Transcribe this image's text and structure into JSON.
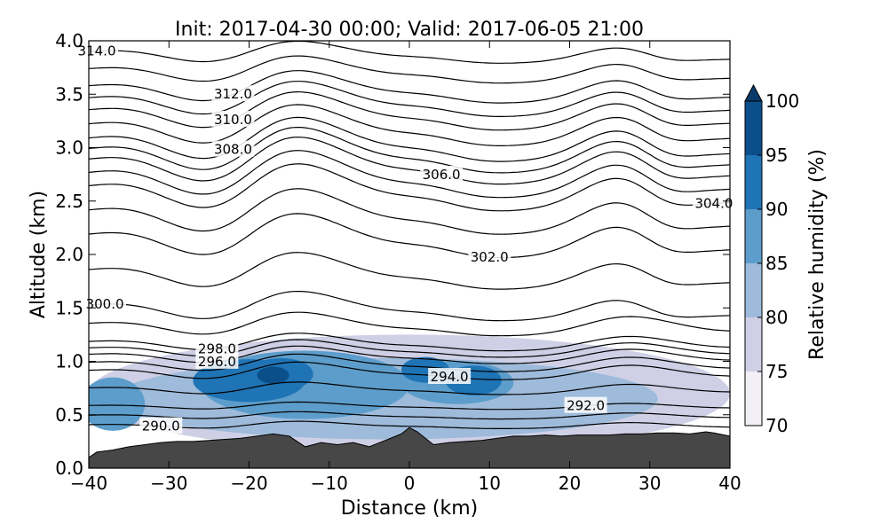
{
  "chart_data": {
    "type": "contour",
    "title": "Init: 2017-04-30 00:00; Valid: 2017-06-05 21:00",
    "xlabel": "Distance (km)",
    "ylabel": "Altitude (km)",
    "xlim": [
      -40,
      40
    ],
    "ylim": [
      0.0,
      4.0
    ],
    "x_ticks": [
      "−40",
      "−30",
      "−20",
      "−10",
      "0",
      "10",
      "20",
      "30",
      "40"
    ],
    "x_tick_values": [
      -40,
      -30,
      -20,
      -10,
      0,
      10,
      20,
      30,
      40
    ],
    "y_ticks": [
      "0.0",
      "0.5",
      "1.0",
      "1.5",
      "2.0",
      "2.5",
      "3.0",
      "3.5",
      "4.0"
    ],
    "y_tick_values": [
      0.0,
      0.5,
      1.0,
      1.5,
      2.0,
      2.5,
      3.0,
      3.5,
      4.0
    ],
    "colorbar": {
      "label": "Relative humidity (%)",
      "levels": [
        70,
        75,
        80,
        85,
        90,
        95,
        100
      ],
      "tick_labels": [
        "70",
        "75",
        "80",
        "85",
        "90",
        "95",
        "100"
      ],
      "colors": [
        "#f2eff6",
        "#cfd0e6",
        "#9ebbdb",
        "#5c9dcb",
        "#1f74b5",
        "#0b4f8a",
        "#083b6a"
      ],
      "extend": "max"
    },
    "terrain": {
      "color": "#474747",
      "x": [
        -40,
        -39,
        -37,
        -35,
        -33,
        -31,
        -29,
        -27,
        -25,
        -23,
        -21,
        -19,
        -17,
        -15,
        -13,
        -11,
        -9,
        -7,
        -5,
        -3,
        -1,
        0,
        1,
        3,
        5,
        7,
        9,
        11,
        13,
        15,
        17,
        19,
        21,
        23,
        25,
        27,
        29,
        31,
        33,
        35,
        37,
        38,
        40
      ],
      "y": [
        0.1,
        0.15,
        0.17,
        0.2,
        0.22,
        0.24,
        0.25,
        0.25,
        0.26,
        0.27,
        0.28,
        0.3,
        0.32,
        0.3,
        0.2,
        0.24,
        0.22,
        0.24,
        0.2,
        0.26,
        0.32,
        0.38,
        0.34,
        0.22,
        0.24,
        0.25,
        0.26,
        0.28,
        0.3,
        0.3,
        0.31,
        0.3,
        0.31,
        0.31,
        0.31,
        0.32,
        0.32,
        0.33,
        0.33,
        0.32,
        0.34,
        0.33,
        0.3
      ]
    },
    "humidity_blobs": [
      {
        "level": 75,
        "cx": 0,
        "cy": 0.7,
        "rx": 40,
        "ry": 0.55
      },
      {
        "level": 80,
        "cx": -3,
        "cy": 0.65,
        "rx": 34,
        "ry": 0.38
      },
      {
        "level": 85,
        "cx": -13,
        "cy": 0.78,
        "rx": 13,
        "ry": 0.32
      },
      {
        "level": 85,
        "cx": 6,
        "cy": 0.8,
        "rx": 7,
        "ry": 0.2
      },
      {
        "level": 85,
        "cx": -37,
        "cy": 0.6,
        "rx": 4,
        "ry": 0.25
      },
      {
        "level": 90,
        "cx": -20,
        "cy": 0.82,
        "rx": 7,
        "ry": 0.2
      },
      {
        "level": 90,
        "cx": -16,
        "cy": 0.88,
        "rx": 4,
        "ry": 0.15
      },
      {
        "level": 90,
        "cx": 2,
        "cy": 0.92,
        "rx": 3,
        "ry": 0.12
      },
      {
        "level": 90,
        "cx": 8,
        "cy": 0.82,
        "rx": 3.5,
        "ry": 0.14
      },
      {
        "level": 95,
        "cx": -17,
        "cy": 0.87,
        "rx": 2,
        "ry": 0.08
      }
    ],
    "contours": [
      {
        "label": "290.0",
        "base": 0.4,
        "label_x": -31,
        "amp": 0.05
      },
      {
        "label": "292.0",
        "base": 0.58,
        "label_x": 22,
        "amp": 0.05
      },
      {
        "label": "294.0",
        "base": 0.9,
        "label_x": 5,
        "amp": 0.12
      },
      {
        "label": "296.0",
        "base": 1.05,
        "label_x": -24,
        "amp": 0.12
      },
      {
        "label": "298.0",
        "base": 1.17,
        "label_x": -24,
        "amp": 0.12
      },
      {
        "label": "300.0",
        "base": 1.5,
        "label_x": -38,
        "amp": 0.2
      },
      {
        "label": "302.0",
        "base": 2.15,
        "label_x": 10,
        "amp": 0.3
      },
      {
        "label": "304.0",
        "base": 2.6,
        "label_x": 38,
        "amp": 0.32
      },
      {
        "label": "306.0",
        "base": 2.85,
        "label_x": 4,
        "amp": 0.32
      },
      {
        "label": "308.0",
        "base": 3.05,
        "label_x": -22,
        "amp": 0.3
      },
      {
        "label": "310.0",
        "base": 3.32,
        "label_x": -22,
        "amp": 0.26
      },
      {
        "label": "312.0",
        "base": 3.55,
        "label_x": -22,
        "amp": 0.22
      },
      {
        "label": "314.0",
        "base": 3.88,
        "label_x": -39,
        "amp": 0.15
      }
    ],
    "grid": false
  }
}
